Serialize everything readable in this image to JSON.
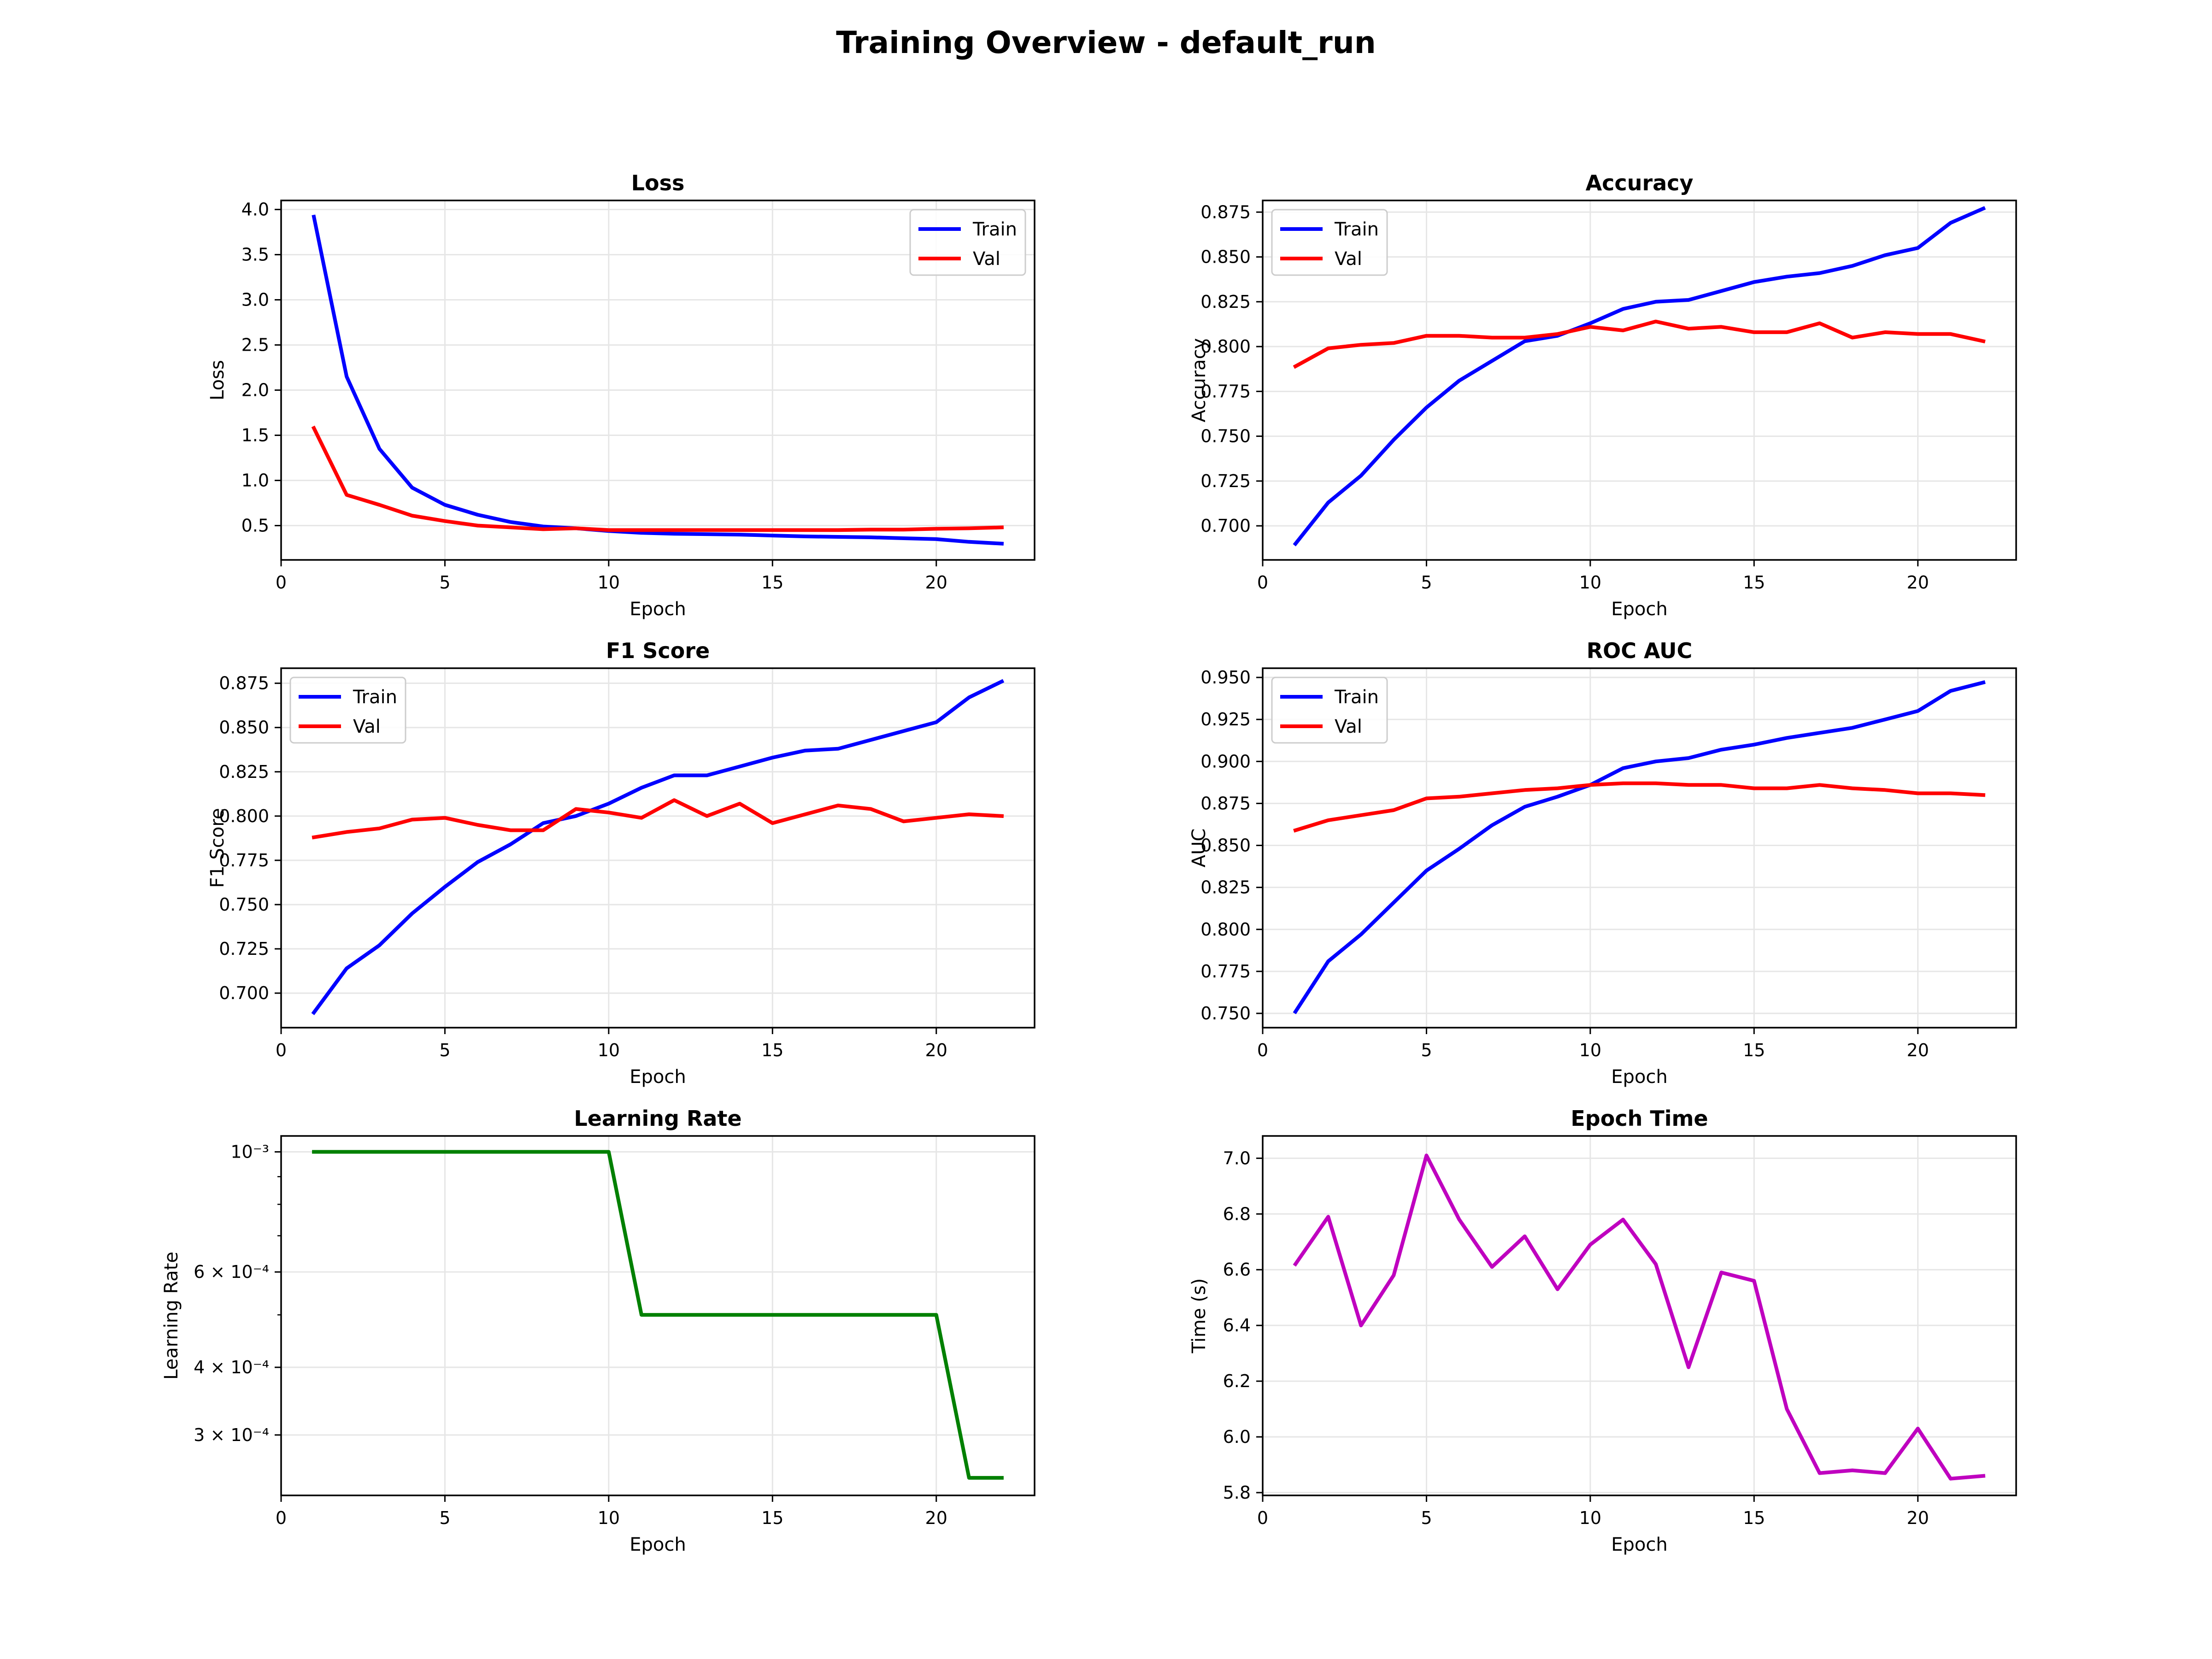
{
  "figure_title": "Training Overview - default_run",
  "colors": {
    "train": "#0000ff",
    "val": "#ff0000",
    "lr": "#008000",
    "time": "#bf00bf",
    "grid": "#e6e6e6"
  },
  "chart_data": [
    {
      "type": "line",
      "title": "Loss",
      "xlabel": "Epoch",
      "ylabel": "Loss",
      "xlim": [
        0,
        23
      ],
      "ylim": [
        0.12,
        4.1
      ],
      "xticks": [
        0,
        5,
        10,
        15,
        20
      ],
      "yticks": [
        0.5,
        1.0,
        1.5,
        2.0,
        2.5,
        3.0,
        3.5,
        4.0
      ],
      "ytick_labels": [
        "0.5",
        "1.0",
        "1.5",
        "2.0",
        "2.5",
        "3.0",
        "3.5",
        "4.0"
      ],
      "grid": true,
      "legend": "top-right",
      "x": [
        1,
        2,
        3,
        4,
        5,
        6,
        7,
        8,
        9,
        10,
        11,
        12,
        13,
        14,
        15,
        16,
        17,
        18,
        19,
        20,
        21,
        22
      ],
      "series": [
        {
          "name": "Train",
          "color": "#0000ff",
          "values": [
            3.92,
            2.15,
            1.35,
            0.92,
            0.73,
            0.62,
            0.54,
            0.49,
            0.47,
            0.44,
            0.42,
            0.41,
            0.405,
            0.4,
            0.39,
            0.38,
            0.375,
            0.37,
            0.36,
            0.35,
            0.32,
            0.3
          ]
        },
        {
          "name": "Val",
          "color": "#ff0000",
          "values": [
            1.58,
            0.84,
            0.73,
            0.61,
            0.55,
            0.5,
            0.48,
            0.46,
            0.47,
            0.45,
            0.45,
            0.45,
            0.45,
            0.45,
            0.45,
            0.45,
            0.45,
            0.455,
            0.455,
            0.465,
            0.47,
            0.48
          ]
        }
      ]
    },
    {
      "type": "line",
      "title": "Accuracy",
      "xlabel": "Epoch",
      "ylabel": "Accuracy",
      "xlim": [
        0,
        23
      ],
      "ylim": [
        0.681,
        0.8815
      ],
      "xticks": [
        0,
        5,
        10,
        15,
        20
      ],
      "yticks": [
        0.7,
        0.725,
        0.75,
        0.775,
        0.8,
        0.825,
        0.85,
        0.875
      ],
      "ytick_labels": [
        "0.700",
        "0.725",
        "0.750",
        "0.775",
        "0.800",
        "0.825",
        "0.850",
        "0.875"
      ],
      "grid": true,
      "legend": "top-left",
      "x": [
        1,
        2,
        3,
        4,
        5,
        6,
        7,
        8,
        9,
        10,
        11,
        12,
        13,
        14,
        15,
        16,
        17,
        18,
        19,
        20,
        21,
        22
      ],
      "series": [
        {
          "name": "Train",
          "color": "#0000ff",
          "values": [
            0.69,
            0.713,
            0.728,
            0.748,
            0.766,
            0.781,
            0.792,
            0.803,
            0.806,
            0.813,
            0.821,
            0.825,
            0.826,
            0.831,
            0.836,
            0.839,
            0.841,
            0.845,
            0.851,
            0.855,
            0.869,
            0.877
          ]
        },
        {
          "name": "Val",
          "color": "#ff0000",
          "values": [
            0.789,
            0.799,
            0.801,
            0.802,
            0.806,
            0.806,
            0.805,
            0.805,
            0.807,
            0.811,
            0.809,
            0.814,
            0.81,
            0.811,
            0.808,
            0.808,
            0.813,
            0.805,
            0.808,
            0.807,
            0.807,
            0.803
          ]
        }
      ]
    },
    {
      "type": "line",
      "title": "F1 Score",
      "xlabel": "Epoch",
      "ylabel": "F1 Score",
      "xlim": [
        0,
        23
      ],
      "ylim": [
        0.6805,
        0.8835
      ],
      "xticks": [
        0,
        5,
        10,
        15,
        20
      ],
      "yticks": [
        0.7,
        0.725,
        0.75,
        0.775,
        0.8,
        0.825,
        0.85,
        0.875
      ],
      "ytick_labels": [
        "0.700",
        "0.725",
        "0.750",
        "0.775",
        "0.800",
        "0.825",
        "0.850",
        "0.875"
      ],
      "grid": true,
      "legend": "top-left",
      "x": [
        1,
        2,
        3,
        4,
        5,
        6,
        7,
        8,
        9,
        10,
        11,
        12,
        13,
        14,
        15,
        16,
        17,
        18,
        19,
        20,
        21,
        22
      ],
      "series": [
        {
          "name": "Train",
          "color": "#0000ff",
          "values": [
            0.689,
            0.714,
            0.727,
            0.745,
            0.76,
            0.774,
            0.784,
            0.796,
            0.8,
            0.807,
            0.816,
            0.823,
            0.823,
            0.828,
            0.833,
            0.837,
            0.838,
            0.843,
            0.848,
            0.853,
            0.867,
            0.876
          ]
        },
        {
          "name": "Val",
          "color": "#ff0000",
          "values": [
            0.788,
            0.791,
            0.793,
            0.798,
            0.799,
            0.795,
            0.792,
            0.792,
            0.804,
            0.802,
            0.799,
            0.809,
            0.8,
            0.807,
            0.796,
            0.801,
            0.806,
            0.804,
            0.797,
            0.799,
            0.801,
            0.8
          ]
        }
      ]
    },
    {
      "type": "line",
      "title": "ROC AUC",
      "xlabel": "Epoch",
      "ylabel": "AUC",
      "xlim": [
        0,
        23
      ],
      "ylim": [
        0.7415,
        0.9555
      ],
      "xticks": [
        0,
        5,
        10,
        15,
        20
      ],
      "yticks": [
        0.75,
        0.775,
        0.8,
        0.825,
        0.85,
        0.875,
        0.9,
        0.925,
        0.95
      ],
      "ytick_labels": [
        "0.750",
        "0.775",
        "0.800",
        "0.825",
        "0.850",
        "0.875",
        "0.900",
        "0.925",
        "0.950"
      ],
      "grid": true,
      "legend": "top-left",
      "x": [
        1,
        2,
        3,
        4,
        5,
        6,
        7,
        8,
        9,
        10,
        11,
        12,
        13,
        14,
        15,
        16,
        17,
        18,
        19,
        20,
        21,
        22
      ],
      "series": [
        {
          "name": "Train",
          "color": "#0000ff",
          "values": [
            0.751,
            0.781,
            0.797,
            0.816,
            0.835,
            0.848,
            0.862,
            0.873,
            0.879,
            0.886,
            0.896,
            0.9,
            0.902,
            0.907,
            0.91,
            0.914,
            0.917,
            0.92,
            0.925,
            0.93,
            0.942,
            0.947
          ]
        },
        {
          "name": "Val",
          "color": "#ff0000",
          "values": [
            0.859,
            0.865,
            0.868,
            0.871,
            0.878,
            0.879,
            0.881,
            0.883,
            0.884,
            0.886,
            0.887,
            0.887,
            0.886,
            0.886,
            0.884,
            0.884,
            0.886,
            0.884,
            0.883,
            0.881,
            0.881,
            0.88
          ]
        }
      ]
    },
    {
      "type": "line",
      "title": "Learning Rate",
      "xlabel": "Epoch",
      "ylabel": "Learning Rate",
      "yscale": "log",
      "xlim": [
        0,
        23
      ],
      "ylim": [
        0.000232,
        0.00107
      ],
      "xticks": [
        0,
        5,
        10,
        15,
        20
      ],
      "yticks": [
        0.001,
        0.0006,
        0.0004,
        0.0003
      ],
      "ytick_labels": [
        "10⁻³",
        "6 × 10⁻⁴",
        "4 × 10⁻⁴",
        "3 × 10⁻⁴"
      ],
      "minor_yticks": [
        0.0009,
        0.0008,
        0.0007,
        0.0005
      ],
      "grid": true,
      "x": [
        1,
        2,
        3,
        4,
        5,
        6,
        7,
        8,
        9,
        10,
        11,
        12,
        13,
        14,
        15,
        16,
        17,
        18,
        19,
        20,
        21,
        22
      ],
      "series": [
        {
          "color": "#008000",
          "values": [
            0.001,
            0.001,
            0.001,
            0.001,
            0.001,
            0.001,
            0.001,
            0.001,
            0.001,
            0.001,
            0.0005,
            0.0005,
            0.0005,
            0.0005,
            0.0005,
            0.0005,
            0.0005,
            0.0005,
            0.0005,
            0.0005,
            0.00025,
            0.00025
          ]
        }
      ]
    },
    {
      "type": "line",
      "title": "Epoch Time",
      "xlabel": "Epoch",
      "ylabel": "Time (s)",
      "xlim": [
        0,
        23
      ],
      "ylim": [
        5.79,
        7.08
      ],
      "xticks": [
        0,
        5,
        10,
        15,
        20
      ],
      "yticks": [
        5.8,
        6.0,
        6.2,
        6.4,
        6.6,
        6.8,
        7.0
      ],
      "ytick_labels": [
        "5.8",
        "6.0",
        "6.2",
        "6.4",
        "6.6",
        "6.8",
        "7.0"
      ],
      "grid": true,
      "x": [
        1,
        2,
        3,
        4,
        5,
        6,
        7,
        8,
        9,
        10,
        11,
        12,
        13,
        14,
        15,
        16,
        17,
        18,
        19,
        20,
        21,
        22
      ],
      "series": [
        {
          "color": "#bf00bf",
          "values": [
            6.62,
            6.79,
            6.4,
            6.58,
            7.01,
            6.78,
            6.61,
            6.72,
            6.53,
            6.69,
            6.78,
            6.62,
            6.25,
            6.59,
            6.56,
            6.1,
            5.87,
            5.88,
            5.87,
            6.03,
            5.85,
            5.86
          ]
        }
      ]
    }
  ]
}
